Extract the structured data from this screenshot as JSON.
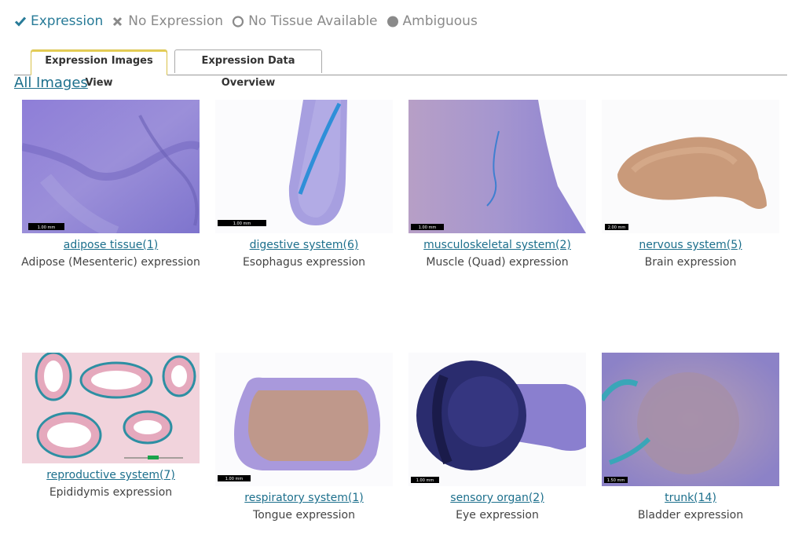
{
  "legend": {
    "expression": "Expression",
    "no_expression": "No Expression",
    "no_tissue": "No Tissue Available",
    "ambiguous": "Ambiguous",
    "expression_color": "#287b98",
    "muted_color": "#8a8a8a"
  },
  "tabs": [
    {
      "label": "Expression Images View",
      "active": true
    },
    {
      "label": "Expression Data Overview",
      "active": false
    }
  ],
  "all_images_link": "All Images",
  "gallery": [
    {
      "category": "adipose tissue(1)",
      "caption": "Adipose (Mesenteric) expression",
      "scale": "1.00 mm"
    },
    {
      "category": "digestive system(6)",
      "caption": "Esophagus expression",
      "scale": "1.00 mm"
    },
    {
      "category": "musculoskeletal system(2)",
      "caption": "Muscle (Quad) expression",
      "scale": "1.00 mm"
    },
    {
      "category": "nervous system(5)",
      "caption": "Brain expression",
      "scale": "2.00 mm"
    },
    {
      "category": "reproductive system(7)",
      "caption": "Epididymis expression",
      "scale": ""
    },
    {
      "category": "respiratory system(1)",
      "caption": "Tongue expression",
      "scale": "1.00 mm"
    },
    {
      "category": "sensory organ(2)",
      "caption": "Eye expression",
      "scale": "1.00 mm"
    },
    {
      "category": "trunk(14)",
      "caption": "Bladder expression",
      "scale": "1.50 mm"
    }
  ]
}
